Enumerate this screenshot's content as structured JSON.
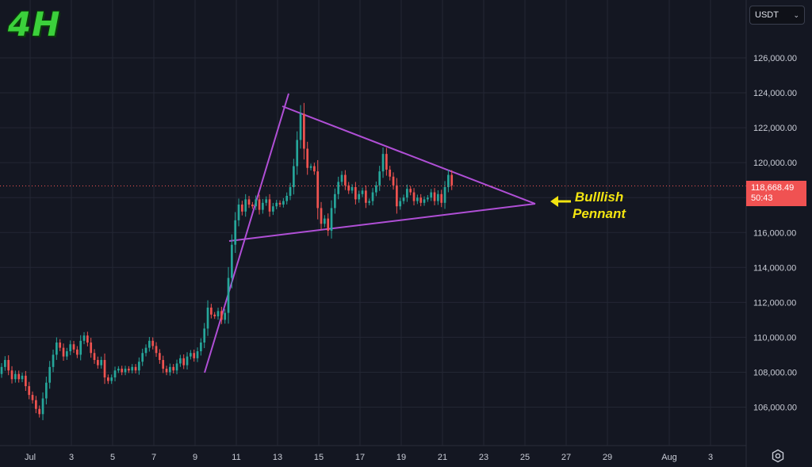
{
  "header": {
    "timeframe": "4H",
    "currency_label": "USDT"
  },
  "price_tag": {
    "price": "118,668.49",
    "countdown": "50:43"
  },
  "annotation": {
    "line1": "Bulllish",
    "line2": "Pennant"
  },
  "colors": {
    "background": "#141722",
    "up": "#26a69a",
    "down": "#ef5350",
    "pattern_lines": "#b04fd6",
    "annotation": "#f2e410",
    "timeframe": "#3bd13b"
  },
  "chart_data": {
    "type": "candlestick",
    "title": "",
    "xlabel": "",
    "ylabel": "",
    "ylim": [
      104000,
      128000
    ],
    "x_ticks": [
      "Jul",
      "3",
      "5",
      "7",
      "9",
      "11",
      "13",
      "15",
      "17",
      "19",
      "21",
      "23",
      "25",
      "27",
      "29",
      "Aug",
      "3"
    ],
    "y_ticks": [
      "106,000.00",
      "108,000.00",
      "110,000.00",
      "112,000.00",
      "114,000.00",
      "116,000.00",
      "118,000.00",
      "120,000.00",
      "122,000.00",
      "124,000.00",
      "126,000.00"
    ],
    "y_tick_values": [
      106000,
      108000,
      110000,
      112000,
      114000,
      116000,
      118000,
      120000,
      122000,
      124000,
      126000
    ],
    "current_price": 118668.49,
    "candle_interval_hours": 4,
    "close": [
      107900,
      108300,
      108700,
      108100,
      107600,
      107900,
      107600,
      107800,
      107200,
      106700,
      106400,
      105900,
      105600,
      106500,
      107400,
      108300,
      109000,
      109700,
      109400,
      108900,
      109200,
      109600,
      109300,
      109000,
      109800,
      110100,
      109700,
      109100,
      108700,
      108400,
      108700,
      107700,
      107500,
      107700,
      108100,
      108200,
      108000,
      108200,
      108100,
      108300,
      108100,
      108600,
      109100,
      109400,
      109800,
      109500,
      109100,
      108700,
      108200,
      108000,
      108300,
      108100,
      108500,
      108800,
      108400,
      108900,
      109100,
      108800,
      109200,
      109700,
      110500,
      111700,
      111300,
      111200,
      111500,
      111000,
      111400,
      113400,
      115300,
      116700,
      117600,
      117200,
      117900,
      117600,
      117500,
      117900,
      117300,
      117700,
      117900,
      117200,
      117500,
      117700,
      117600,
      117800,
      118100,
      118600,
      119800,
      121300,
      122800,
      120800,
      119700,
      119800,
      119500,
      117400,
      116500,
      116800,
      116100,
      117400,
      118200,
      118900,
      119300,
      118700,
      118400,
      118600,
      117900,
      118200,
      118400,
      117700,
      117800,
      118300,
      118700,
      119500,
      120500,
      119600,
      119200,
      118700,
      117500,
      117800,
      118000,
      118500,
      118300,
      117800,
      118000,
      117700,
      117900,
      118000,
      118300,
      117800,
      118200,
      117700,
      118600,
      119300,
      118700
    ]
  }
}
